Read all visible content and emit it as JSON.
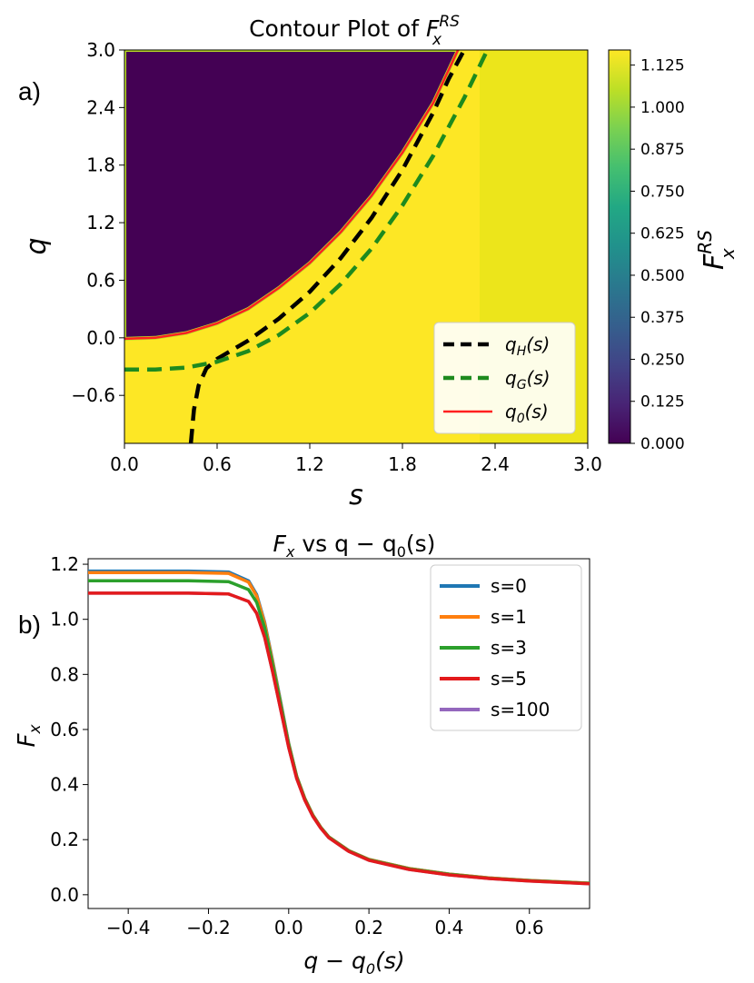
{
  "panel_labels": {
    "a": "a)",
    "b": "b)"
  },
  "chart_data": [
    {
      "type": "heatmap",
      "title_main": "Contour Plot of ",
      "title_var": "F",
      "title_sup": "RS",
      "title_sub": "x",
      "xlabel": "s",
      "ylabel": "q",
      "xlim": [
        0,
        3
      ],
      "ylim": [
        -1.1,
        3.0
      ],
      "xticks": [
        "0.0",
        "0.6",
        "1.2",
        "1.8",
        "2.4",
        "3.0"
      ],
      "yticks": [
        "−0.6",
        "0.0",
        "0.6",
        "1.2",
        "1.8",
        "2.4",
        "3.0"
      ],
      "colorbar": {
        "label_var": "F",
        "label_sup": "RS",
        "label_sub": "x",
        "range": [
          0,
          1.17
        ],
        "ticks": [
          "0.000",
          "0.125",
          "0.250",
          "0.375",
          "0.500",
          "0.625",
          "0.750",
          "0.875",
          "1.000",
          "1.125"
        ],
        "colormap": "viridis"
      },
      "curves": [
        {
          "name": "q_H(s)",
          "label_base": "q",
          "label_sub": "H",
          "label_tail": "(s)",
          "color": "#000000",
          "dash": "dashed",
          "points": [
            [
              0.43,
              -1.1
            ],
            [
              0.45,
              -0.75
            ],
            [
              0.48,
              -0.5
            ],
            [
              0.53,
              -0.32
            ],
            [
              0.6,
              -0.22
            ],
            [
              0.8,
              -0.03
            ],
            [
              1.0,
              0.2
            ],
            [
              1.2,
              0.48
            ],
            [
              1.4,
              0.83
            ],
            [
              1.6,
              1.25
            ],
            [
              1.8,
              1.75
            ],
            [
              2.0,
              2.35
            ],
            [
              2.1,
              2.7
            ],
            [
              2.2,
              3.0
            ]
          ]
        },
        {
          "name": "q_G(s)",
          "label_base": "q",
          "label_sub": "G",
          "label_tail": "(s)",
          "color": "#1e8a1e",
          "dash": "dashed",
          "points": [
            [
              0.0,
              -0.33
            ],
            [
              0.2,
              -0.33
            ],
            [
              0.4,
              -0.31
            ],
            [
              0.6,
              -0.25
            ],
            [
              0.8,
              -0.14
            ],
            [
              1.0,
              0.03
            ],
            [
              1.2,
              0.26
            ],
            [
              1.4,
              0.56
            ],
            [
              1.6,
              0.93
            ],
            [
              1.8,
              1.38
            ],
            [
              2.0,
              1.9
            ],
            [
              2.2,
              2.5
            ],
            [
              2.35,
              3.0
            ]
          ]
        },
        {
          "name": "q_0(s)",
          "label_base": "q",
          "label_sub": "0",
          "label_tail": "(s)",
          "color": "#ff2020",
          "dash": "solid",
          "points": [
            [
              0.0,
              -0.01
            ],
            [
              0.2,
              0.0
            ],
            [
              0.4,
              0.05
            ],
            [
              0.6,
              0.15
            ],
            [
              0.8,
              0.3
            ],
            [
              1.0,
              0.52
            ],
            [
              1.2,
              0.78
            ],
            [
              1.4,
              1.1
            ],
            [
              1.6,
              1.48
            ],
            [
              1.8,
              1.93
            ],
            [
              2.0,
              2.45
            ],
            [
              2.16,
              3.0
            ]
          ]
        }
      ],
      "legend_position": "lower right"
    },
    {
      "type": "line",
      "title_pre": "F",
      "title_sub": "x",
      "title_mid": " vs q − q",
      "title_sub2": "0",
      "title_post": "(s)",
      "xlabel_main": "q − q",
      "xlabel_sub": "0",
      "xlabel_tail": "(s)",
      "ylabel_main": "F",
      "ylabel_sub": "x",
      "xlim": [
        -0.5,
        0.75
      ],
      "ylim": [
        -0.05,
        1.22
      ],
      "xticks": [
        "−0.4",
        "−0.2",
        "0.0",
        "0.2",
        "0.4",
        "0.6"
      ],
      "yticks": [
        "0.0",
        "0.2",
        "0.4",
        "0.6",
        "0.8",
        "1.0",
        "1.2"
      ],
      "x": [
        -0.5,
        -0.25,
        -0.15,
        -0.1,
        -0.08,
        -0.06,
        -0.04,
        -0.02,
        0.0,
        0.02,
        0.04,
        0.06,
        0.08,
        0.1,
        0.15,
        0.2,
        0.3,
        0.4,
        0.5,
        0.6,
        0.75
      ],
      "series": [
        {
          "name": "s=0",
          "color": "#1f77b4",
          "values": [
            1.175,
            1.175,
            1.172,
            1.14,
            1.09,
            0.99,
            0.85,
            0.7,
            0.55,
            0.43,
            0.35,
            0.29,
            0.245,
            0.21,
            0.16,
            0.128,
            0.095,
            0.075,
            0.061,
            0.052,
            0.042
          ]
        },
        {
          "name": "s=1",
          "color": "#ff7f0e",
          "values": [
            1.17,
            1.17,
            1.167,
            1.135,
            1.085,
            0.985,
            0.845,
            0.695,
            0.548,
            0.43,
            0.35,
            0.29,
            0.245,
            0.21,
            0.16,
            0.128,
            0.095,
            0.075,
            0.061,
            0.052,
            0.042
          ]
        },
        {
          "name": "s=3",
          "color": "#2ca02c",
          "values": [
            1.14,
            1.14,
            1.137,
            1.108,
            1.062,
            0.97,
            0.835,
            0.69,
            0.545,
            0.428,
            0.348,
            0.288,
            0.244,
            0.209,
            0.159,
            0.127,
            0.094,
            0.074,
            0.06,
            0.051,
            0.041
          ]
        },
        {
          "name": "s=5",
          "color": "#e31a1c",
          "values": [
            1.095,
            1.095,
            1.092,
            1.065,
            1.022,
            0.935,
            0.81,
            0.672,
            0.535,
            0.422,
            0.344,
            0.285,
            0.242,
            0.207,
            0.157,
            0.125,
            0.092,
            0.072,
            0.059,
            0.05,
            0.04
          ]
        },
        {
          "name": "s=100",
          "color": "#9467bd",
          "values": [
            1.095,
            1.095,
            1.092,
            1.065,
            1.022,
            0.935,
            0.81,
            0.672,
            0.535,
            0.422,
            0.344,
            0.285,
            0.242,
            0.207,
            0.157,
            0.125,
            0.092,
            0.072,
            0.059,
            0.05,
            0.04
          ]
        }
      ],
      "legend_position": "upper right"
    }
  ]
}
